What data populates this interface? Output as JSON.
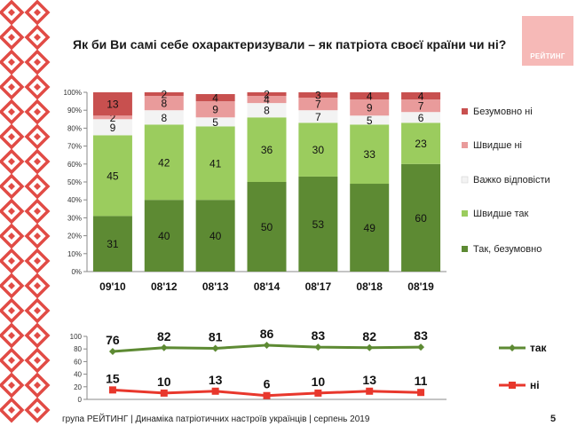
{
  "title": "Як  би Ви самі себе охарактеризували – як патріота своєї країни чи ні?",
  "logo": {
    "text": "РЕЙТИНГ"
  },
  "footer": {
    "text": "група РЕЙТИНГ | Динаміка патріотичних настроїв українців | серпень  2019",
    "page": "5"
  },
  "colors": {
    "ornament": "#e14b45",
    "logo": "#f6b9b7"
  },
  "chart_data": [
    {
      "type": "bar",
      "stacked": true,
      "categories": [
        "09'10",
        "08'12",
        "08'13",
        "08'14",
        "08'17",
        "08'18",
        "08'19"
      ],
      "yticks": [
        "0%",
        "10%",
        "20%",
        "30%",
        "40%",
        "50%",
        "60%",
        "70%",
        "80%",
        "90%",
        "100%"
      ],
      "ylim": [
        0,
        100
      ],
      "legend_position": "right",
      "series": [
        {
          "name": "Так, безумовно",
          "color": "#5d8a33",
          "values": [
            31,
            40,
            40,
            50,
            53,
            49,
            60
          ]
        },
        {
          "name": "Швидше так",
          "color": "#9bcc5e",
          "values": [
            45,
            42,
            41,
            36,
            30,
            33,
            23
          ]
        },
        {
          "name": "Важко відповісти",
          "color": "#f3f3f3",
          "values": [
            9,
            8,
            5,
            8,
            7,
            5,
            6
          ]
        },
        {
          "name": "Швидше ні",
          "color": "#e99b9b",
          "values": [
            2,
            8,
            9,
            4,
            7,
            9,
            7
          ]
        },
        {
          "name": "Безумовно ні",
          "color": "#c8504f",
          "values": [
            13,
            2,
            4,
            2,
            3,
            4,
            4
          ]
        }
      ]
    },
    {
      "type": "line",
      "categories": [
        "09'10",
        "08'12",
        "08'13",
        "08'14",
        "08'17",
        "08'18",
        "08'19"
      ],
      "yticks": [
        "0",
        "20",
        "40",
        "60",
        "80",
        "100"
      ],
      "ylim": [
        0,
        100
      ],
      "legend_position": "right",
      "series": [
        {
          "name": "так",
          "color": "#5d8a33",
          "values": [
            76,
            82,
            81,
            86,
            83,
            82,
            83
          ]
        },
        {
          "name": "ні",
          "color": "#e8372c",
          "values": [
            15,
            10,
            13,
            6,
            10,
            13,
            11
          ]
        }
      ]
    }
  ]
}
